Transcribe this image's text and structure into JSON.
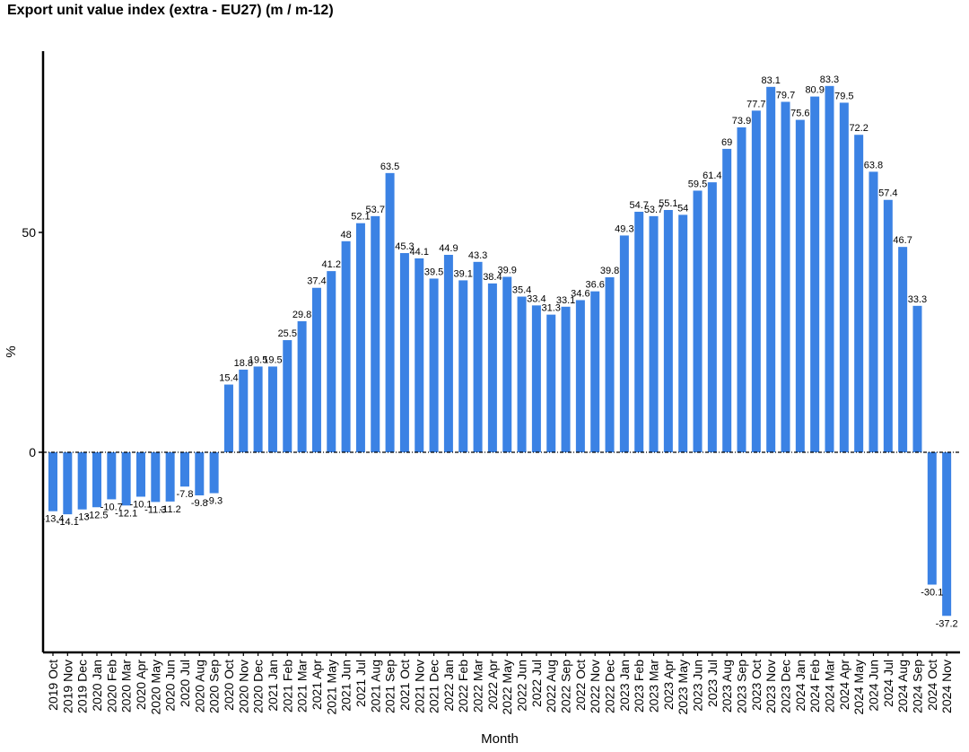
{
  "chart_data": {
    "type": "bar",
    "title": "Export unit value index (extra - EU27) (m / m-12)",
    "xlabel": "Month",
    "ylabel": "%",
    "ylim": [
      -45,
      90
    ],
    "yticks": [
      0,
      50
    ],
    "bar_color": "#3b82e4",
    "zero_line": "dashed",
    "grid": false,
    "legend": "none",
    "categories": [
      "2019 Oct",
      "2019 Nov",
      "2019 Dec",
      "2020 Jan",
      "2020 Feb",
      "2020 Mar",
      "2020 Apr",
      "2020 May",
      "2020 Jun",
      "2020 Jul",
      "2020 Aug",
      "2020 Sep",
      "2020 Oct",
      "2020 Nov",
      "2020 Dec",
      "2021 Jan",
      "2021 Feb",
      "2021 Mar",
      "2021 Apr",
      "2021 May",
      "2021 Jun",
      "2021 Jul",
      "2021 Aug",
      "2021 Sep",
      "2021 Oct",
      "2021 Nov",
      "2021 Dec",
      "2022 Jan",
      "2022 Feb",
      "2022 Mar",
      "2022 Apr",
      "2022 May",
      "2022 Jun",
      "2022 Jul",
      "2022 Aug",
      "2022 Sep",
      "2022 Oct",
      "2022 Nov",
      "2022 Dec",
      "2023 Jan",
      "2023 Feb",
      "2023 Mar",
      "2023 Apr",
      "2023 May",
      "2023 Jun",
      "2023 Jul",
      "2023 Aug",
      "2023 Sep",
      "2023 Oct",
      "2023 Nov",
      "2023 Dec",
      "2024 Jan",
      "2024 Feb",
      "2024 Mar",
      "2024 Apr",
      "2024 May",
      "2024 Jun",
      "2024 Jul",
      "2024 Aug",
      "2024 Sep",
      "2024 Oct",
      "2024 Nov"
    ],
    "values": [
      -13.4,
      -14.1,
      -13,
      -12.5,
      -10.7,
      -12.1,
      -10.1,
      -11.3,
      -11.2,
      -7.8,
      -9.8,
      -9.3,
      15.4,
      18.8,
      19.5,
      19.5,
      25.5,
      29.8,
      37.4,
      41.2,
      48,
      52.1,
      53.7,
      63.5,
      45.3,
      44.1,
      39.5,
      44.9,
      39.1,
      43.3,
      38.4,
      39.9,
      35.4,
      33.4,
      31.3,
      33.1,
      34.6,
      36.6,
      39.8,
      49.3,
      54.7,
      53.7,
      55.1,
      54,
      59.5,
      61.4,
      69,
      73.9,
      77.7,
      83.1,
      79.7,
      75.6,
      80.9,
      83.3,
      79.5,
      72.2,
      63.8,
      57.4,
      46.7,
      33.3,
      -30.1,
      -37.2
    ]
  }
}
